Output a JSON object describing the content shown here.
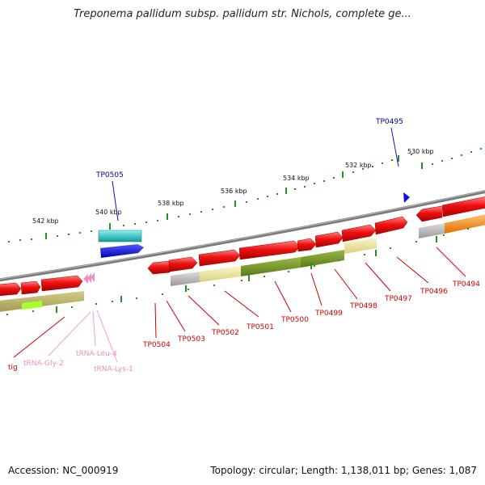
{
  "title": "Treponema pallidum subsp. pallidum str. Nichols, complete ge...",
  "footer": {
    "accession": "Accession: NC_000919",
    "stats": "Topology: circular; Length: 1,138,011 bp; Genes: 1,087"
  },
  "scale_labels": [
    "542 kbp",
    "540 kbp",
    "538 kbp",
    "536 kbp",
    "534 kbp",
    "532 kbp",
    "530 kbp"
  ],
  "top_genes": [
    "TP0505",
    "TP0495"
  ],
  "bottom_genes": [
    "tig",
    "tRNA-Gly-2",
    "tRNA-Leu-4",
    "tRNA-Lys-1",
    "TP0504",
    "TP0503",
    "TP0502",
    "TP0501",
    "TP0500",
    "TP0499",
    "TP0498",
    "TP0497",
    "TP0496",
    "TP0494"
  ],
  "colors": {
    "gene_red": "#ee1111",
    "trna_pink": "#f48cc8",
    "tp0505_cyan": "#20c4c4",
    "tp0505_blue": "#1010e0",
    "olive": "#6e8c1e",
    "pale_yellow": "#ece79a",
    "grey": "#b4b4b4",
    "orange": "#ff8c10",
    "green_tick": "#2c8a2c",
    "label_red": "#cc0000",
    "label_blue": "#000099",
    "label_pink": "#e58fc0"
  }
}
